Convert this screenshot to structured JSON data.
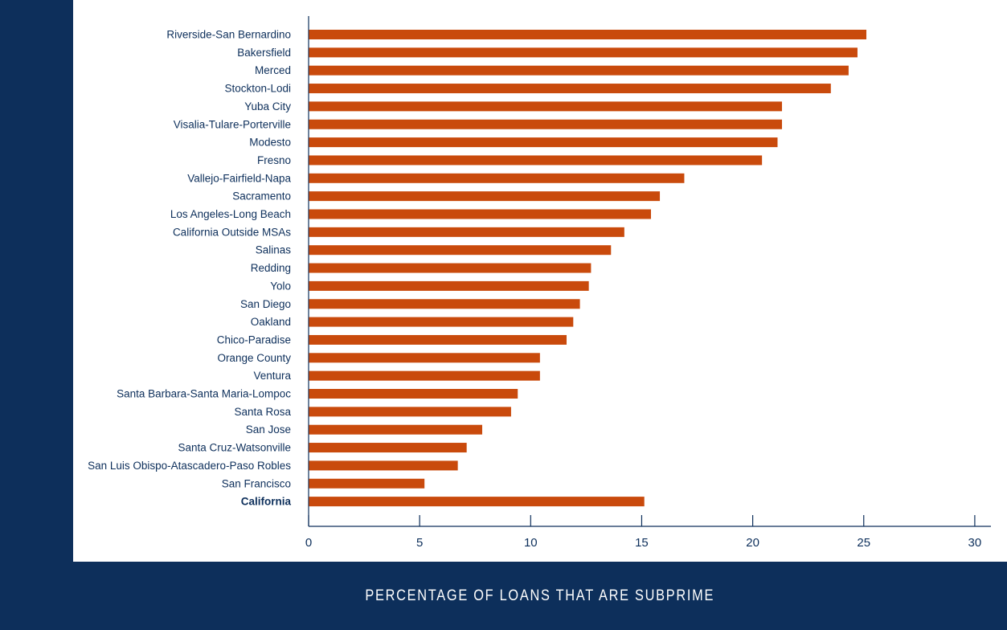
{
  "colors": {
    "bar": "#c94a0c",
    "text": "#0d2f5b",
    "frame": "#0d2f5b"
  },
  "caption": "PERCENTAGE OF LOANS THAT ARE SUBPRIME",
  "chart_data": {
    "type": "bar",
    "orientation": "horizontal",
    "categories": [
      "Riverside-San Bernardino",
      "Bakersfield",
      "Merced",
      "Stockton-Lodi",
      "Yuba City",
      "Visalia-Tulare-Porterville",
      "Modesto",
      "Fresno",
      "Vallejo-Fairfield-Napa",
      "Sacramento",
      "Los Angeles-Long Beach",
      "California Outside MSAs",
      "Salinas",
      "Redding",
      "Yolo",
      "San Diego",
      "Oakland",
      "Chico-Paradise",
      "Orange County",
      "Ventura",
      "Santa Barbara-Santa Maria-Lompoc",
      "Santa Rosa",
      "San Jose",
      "Santa Cruz-Watsonville",
      "San Luis Obispo-Atascadero-Paso Robles",
      "San Francisco",
      "California"
    ],
    "bold_categories": [
      "California"
    ],
    "values": [
      25.1,
      24.7,
      24.3,
      23.5,
      21.3,
      21.3,
      21.1,
      20.4,
      16.9,
      15.8,
      15.4,
      14.2,
      13.6,
      12.7,
      12.6,
      12.2,
      11.9,
      11.6,
      10.4,
      10.4,
      9.4,
      9.1,
      7.8,
      7.1,
      6.7,
      5.2,
      15.1
    ],
    "xlim": [
      0,
      30
    ],
    "xticks": [
      "0",
      "5",
      "10",
      "15",
      "20",
      "25",
      "30"
    ],
    "xlabel": "PERCENTAGE OF LOANS THAT ARE SUBPRIME",
    "grid": false
  }
}
